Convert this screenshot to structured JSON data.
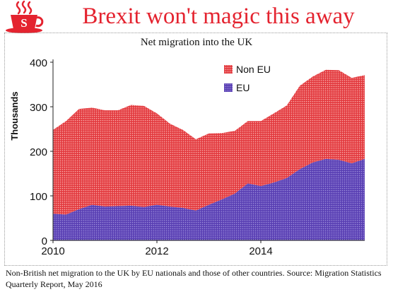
{
  "headline": "Brexit won't magic this away",
  "logo": {
    "letter": "S",
    "icon": "steaming-cup-icon"
  },
  "source_note": "Non-British net migration to the UK by EU nationals and those of other countries. Source: Migration Statistics Quarterly Report, May 2016",
  "colors": {
    "headline": "#e4232f",
    "eu": "#6a4fc1",
    "non_eu": "#e8474c"
  },
  "chart_data": {
    "type": "area",
    "stacked": true,
    "title": "Net migration into the UK",
    "xlabel": "",
    "ylabel": "Thousands",
    "xlim": [
      2010,
      2016
    ],
    "ylim": [
      0,
      400
    ],
    "xticks": [
      2010,
      2012,
      2014
    ],
    "yticks": [
      0,
      100,
      200,
      300,
      400
    ],
    "grid": "none",
    "legend": "top-right",
    "x": [
      2010,
      2010.25,
      2010.5,
      2010.75,
      2011,
      2011.25,
      2011.5,
      2011.75,
      2012,
      2012.25,
      2012.5,
      2012.75,
      2013,
      2013.25,
      2013.5,
      2013.75,
      2014,
      2014.25,
      2014.5,
      2014.75,
      2015,
      2015.25,
      2015.5,
      2015.75,
      2016
    ],
    "series": [
      {
        "name": "EU",
        "values": [
          60,
          58,
          70,
          80,
          76,
          77,
          78,
          75,
          80,
          76,
          73,
          67,
          80,
          92,
          105,
          128,
          122,
          130,
          140,
          160,
          175,
          183,
          181,
          173,
          183
        ]
      },
      {
        "name": "Non EU",
        "values": [
          188,
          210,
          225,
          218,
          216,
          215,
          226,
          227,
          205,
          186,
          175,
          160,
          160,
          149,
          141,
          140,
          146,
          155,
          163,
          187,
          193,
          200,
          201,
          192,
          188
        ]
      }
    ]
  }
}
